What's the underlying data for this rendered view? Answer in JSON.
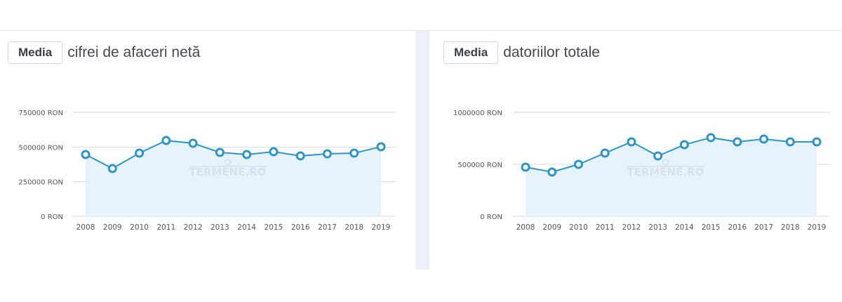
{
  "panels": [
    {
      "button_label": "Media",
      "title": "cifrei de afaceri netă"
    },
    {
      "button_label": "Media",
      "title": "datoriilor totale"
    }
  ],
  "watermark": "TERMENE.RO",
  "colors": {
    "line": "#2e94c8",
    "fill": "#e3f2fb",
    "grid": "#d9d9d9",
    "divider": "#eef0f7"
  },
  "chart_data": [
    {
      "type": "area",
      "title": "Media cifrei de afaceri netă",
      "categories": [
        "2008",
        "2009",
        "2010",
        "2011",
        "2012",
        "2013",
        "2014",
        "2015",
        "2016",
        "2017",
        "2018",
        "2019"
      ],
      "values": [
        446000,
        345000,
        456000,
        547000,
        527000,
        461000,
        446000,
        466000,
        436000,
        451000,
        456000,
        502000
      ],
      "yticks": [
        "0 RON",
        "250000 RON",
        "500000 RON",
        "750000 RON"
      ],
      "ylim": [
        0,
        750000
      ],
      "xlabel": "",
      "ylabel": "RON",
      "grid": true,
      "legend": "none"
    },
    {
      "type": "area",
      "title": "Media datoriilor totale",
      "categories": [
        "2008",
        "2009",
        "2010",
        "2011",
        "2012",
        "2013",
        "2014",
        "2015",
        "2016",
        "2017",
        "2018",
        "2019"
      ],
      "values": [
        473000,
        426000,
        500000,
        608000,
        716000,
        581000,
        689000,
        757000,
        716000,
        743000,
        716000,
        716000
      ],
      "yticks": [
        "0 RON",
        "500000 RON",
        "1000000 RON"
      ],
      "ylim": [
        0,
        1000000
      ],
      "xlabel": "",
      "ylabel": "RON",
      "grid": true,
      "legend": "none"
    }
  ]
}
